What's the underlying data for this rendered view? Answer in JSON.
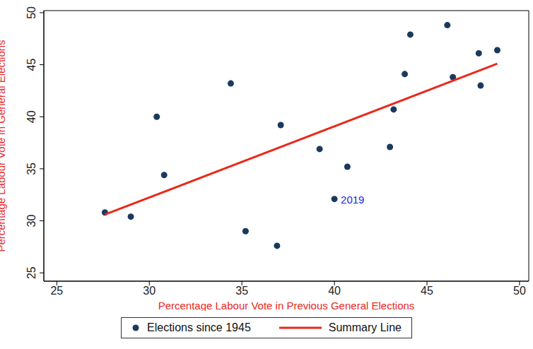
{
  "chart_data": {
    "type": "scatter",
    "xlabel": "Percentage Labour Vote in Previous General Elections",
    "ylabel": "Percentage Labour Vote in General Elections",
    "xlim": [
      24.3,
      50.5
    ],
    "ylim": [
      24.2,
      50.2
    ],
    "xticks": [
      25,
      30,
      35,
      40,
      45,
      50
    ],
    "yticks": [
      25,
      30,
      35,
      40,
      45,
      50
    ],
    "grid": false,
    "legend": "bottom",
    "series": [
      {
        "name": "Elections since 1945",
        "type": "scatter",
        "marker": "circle",
        "color": "#1a3a5c",
        "x": [
          27.6,
          29.0,
          30.4,
          30.8,
          34.4,
          35.2,
          36.9,
          37.1,
          39.2,
          40.0,
          40.7,
          43.0,
          43.2,
          43.8,
          44.1,
          46.1,
          46.4,
          47.8,
          47.9,
          48.8
        ],
        "values": [
          30.8,
          30.4,
          40.0,
          34.4,
          43.2,
          29.0,
          27.6,
          39.2,
          36.9,
          32.1,
          35.2,
          37.1,
          40.7,
          44.1,
          47.9,
          48.8,
          43.8,
          46.1,
          43.0,
          46.4
        ]
      },
      {
        "name": "Summary Line",
        "type": "line",
        "line_style": "solid",
        "color": "#e8291c",
        "x": [
          27.6,
          48.8
        ],
        "values": [
          30.6,
          45.1
        ]
      }
    ],
    "annotations": [
      {
        "text": "2019",
        "x": 40.0,
        "y": 32.1,
        "color": "#1f1fe0"
      }
    ]
  }
}
